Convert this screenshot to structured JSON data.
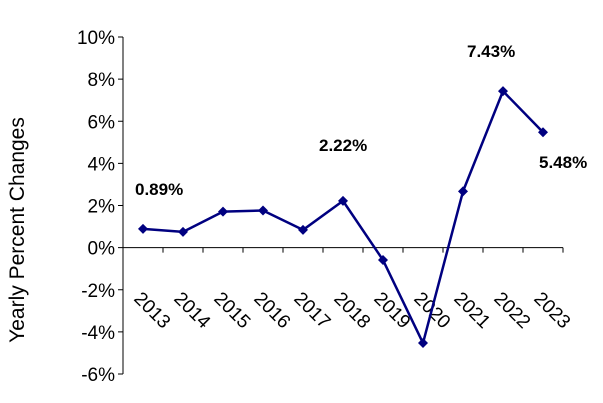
{
  "chart_data": {
    "type": "line",
    "ylabel": "Yearly Percent Changes",
    "categories": [
      "2013",
      "2014",
      "2015",
      "2016",
      "2017",
      "2018",
      "2019",
      "2020",
      "2021",
      "2022",
      "2023"
    ],
    "series": [
      {
        "values": [
          0.89,
          0.75,
          1.71,
          1.76,
          0.84,
          2.22,
          -0.59,
          -4.53,
          2.67,
          7.43,
          5.48
        ]
      }
    ],
    "ylim": [
      -6,
      10
    ],
    "yticks": [
      -6,
      -4,
      -2,
      0,
      2,
      4,
      6,
      8,
      10
    ],
    "ytick_labels": [
      "-6%",
      "-4%",
      "-2%",
      "0%",
      "2%",
      "4%",
      "6%",
      "8%",
      "10%"
    ],
    "data_labels": [
      {
        "category": "2013",
        "text": "0.89%"
      },
      {
        "category": "2018",
        "text": "2.22%"
      },
      {
        "category": "2022",
        "text": "7.43%"
      },
      {
        "category": "2023",
        "text": "5.48%"
      }
    ],
    "line_color": "#000080",
    "grid": false,
    "legend": "none"
  }
}
